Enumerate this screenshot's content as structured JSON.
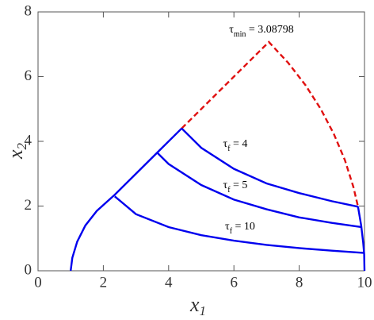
{
  "chart_data": {
    "type": "line",
    "xlabel": {
      "base": "x",
      "sub": "1"
    },
    "ylabel": {
      "base": "x",
      "sub": "2"
    },
    "xlim": [
      0,
      10
    ],
    "ylim": [
      0,
      8
    ],
    "xticks": [
      0,
      2,
      4,
      6,
      8,
      10
    ],
    "yticks": [
      0,
      2,
      4,
      6,
      8
    ],
    "series": [
      {
        "color": "#0000ee",
        "style": "solid",
        "x": [
          1,
          1.05,
          1.2,
          1.45,
          1.8,
          2.35,
          3.65,
          4.4
        ],
        "values": [
          0,
          0.4,
          0.9,
          1.4,
          1.85,
          2.35,
          3.65,
          4.4
        ]
      },
      {
        "color": "#e01010",
        "style": "dashed",
        "x": [
          4.4,
          7.07,
          7.66,
          8.19,
          8.66,
          9.06,
          9.4,
          9.66,
          9.8
        ],
        "values": [
          4.4,
          7.07,
          6.43,
          5.74,
          5,
          4.23,
          3.42,
          2.59,
          1.99
        ]
      },
      {
        "color": "#0000ee",
        "style": "solid",
        "x": [
          9.8,
          9.9,
          9.96,
          9.99,
          10
        ],
        "values": [
          1.99,
          1.39,
          0.87,
          0.52,
          0
        ]
      },
      {
        "color": "#0000ee",
        "style": "solid",
        "x": [
          4.4,
          5,
          6,
          7,
          8,
          9,
          9.8
        ],
        "values": [
          4.4,
          3.8,
          3.15,
          2.7,
          2.4,
          2.15,
          1.98
        ]
      },
      {
        "color": "#0000ee",
        "style": "solid",
        "x": [
          3.65,
          4,
          5,
          6,
          7,
          8,
          9,
          9.9
        ],
        "values": [
          3.65,
          3.3,
          2.65,
          2.2,
          1.9,
          1.65,
          1.48,
          1.35
        ]
      },
      {
        "color": "#0000ee",
        "style": "solid",
        "x": [
          2.35,
          3,
          4,
          5,
          6,
          7,
          8,
          9,
          10
        ],
        "values": [
          2.3,
          1.75,
          1.35,
          1.1,
          0.93,
          0.8,
          0.7,
          0.62,
          0.55
        ]
      }
    ],
    "annotations": [
      {
        "base": "τ",
        "sub": "min",
        "tail": " = 3.08798"
      },
      {
        "base": "τ",
        "sub": "f",
        "tail": " = 4"
      },
      {
        "base": "τ",
        "sub": "f",
        "tail": " = 5"
      },
      {
        "base": "τ",
        "sub": "f",
        "tail": " = 10"
      }
    ]
  }
}
